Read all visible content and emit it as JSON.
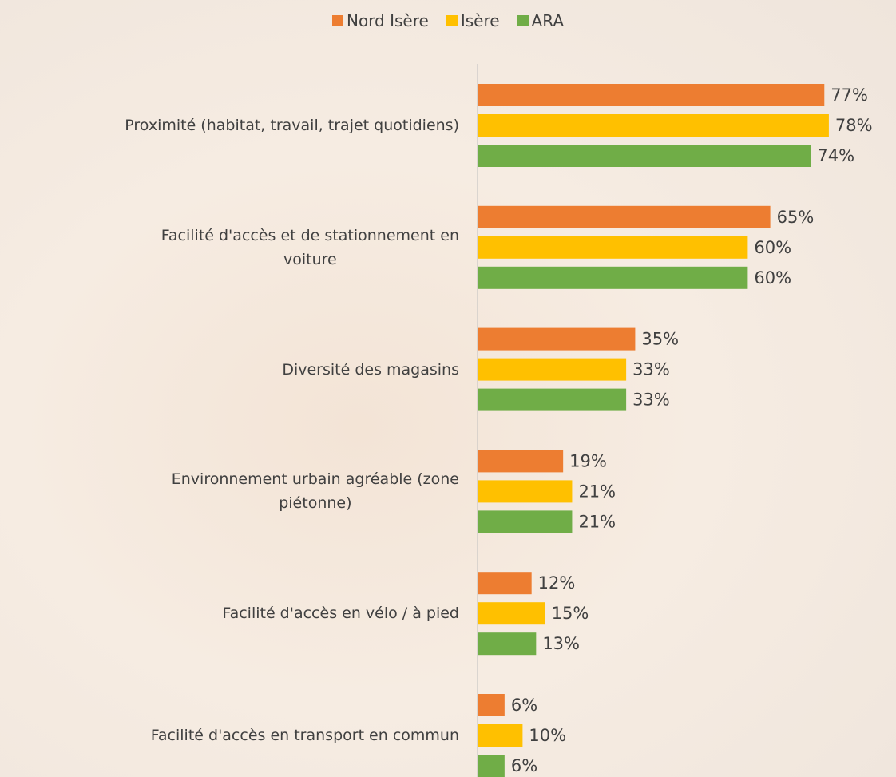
{
  "chart_data": {
    "type": "hbar",
    "categories": [
      "Proximité (habitat, travail, trajet quotidiens)",
      "Facilité d'accès et de stationnement en\nvoiture",
      "Diversité des magasins",
      "Environnement urbain agréable (zone\npiétonne)",
      "Facilité d'accès en vélo / à pied",
      "Facilité d'accès en transport en commun"
    ],
    "series": [
      {
        "name": "Nord Isère",
        "color": "#ed7d31",
        "values": [
          77,
          65,
          35,
          19,
          12,
          6
        ],
        "value_labels": [
          "77%",
          "65%",
          "35%",
          "19%",
          "12%",
          "6%"
        ]
      },
      {
        "name": "Isère",
        "color": "#ffc000",
        "values": [
          78,
          60,
          33,
          21,
          15,
          10
        ],
        "value_labels": [
          "78%",
          "60%",
          "33%",
          "21%",
          "15%",
          "10%"
        ]
      },
      {
        "name": "ARA",
        "color": "#70ad47",
        "values": [
          74,
          60,
          33,
          21,
          13,
          6
        ],
        "value_labels": [
          "74%",
          "60%",
          "33%",
          "21%",
          "13%",
          "6%"
        ]
      }
    ],
    "legend": "top"
  }
}
